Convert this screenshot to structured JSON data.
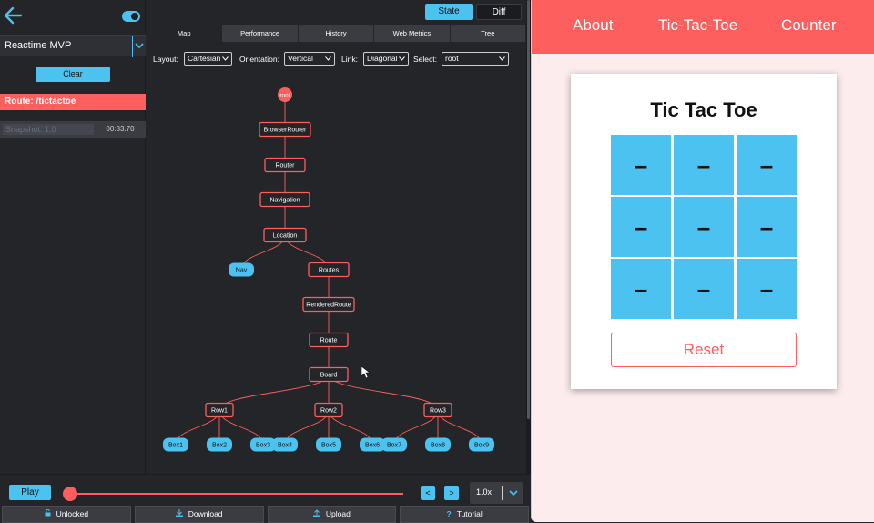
{
  "sidebar": {
    "app_name": "Reactime MVP",
    "clear_label": "Clear",
    "route_label": "Route: /tictactoe",
    "snapshot_label": "Snapshot: 1.0",
    "snapshot_time": "00:33.70"
  },
  "view_toggle": {
    "state_label": "State",
    "diff_label": "Diff"
  },
  "tabs": [
    {
      "label": "Map",
      "active": true
    },
    {
      "label": "Performance"
    },
    {
      "label": "History"
    },
    {
      "label": "Web Metrics"
    },
    {
      "label": "Tree"
    }
  ],
  "controls": {
    "layout_label": "Layout:",
    "layout_value": "Cartesian",
    "orientation_label": "Orientation:",
    "orientation_value": "Vertical",
    "link_label": "Link:",
    "link_value": "Diagonal",
    "select_label": "Select:",
    "select_value": "root"
  },
  "tree": {
    "root": "root",
    "browser_router": "BrowserRouter",
    "router": "Router",
    "navigation": "Navigation",
    "location": "Location",
    "nav": "Nav",
    "routes": "Routes",
    "rendered_route": "RenderedRoute",
    "route": "Route",
    "board": "Board",
    "rows": [
      "Row1",
      "Row2",
      "Row3"
    ],
    "boxes": [
      "Box1",
      "Box2",
      "Box3",
      "Box4",
      "Box5",
      "Box6",
      "Box7",
      "Box8",
      "Box9"
    ]
  },
  "playback": {
    "play_label": "Play",
    "prev_label": "<",
    "next_label": ">",
    "speed_label": "1.0x"
  },
  "actions": {
    "unlocked_label": "Unlocked",
    "download_label": "Download",
    "upload_label": "Upload",
    "tutorial_label": "Tutorial"
  },
  "app": {
    "nav": [
      "About",
      "Tic-Tac-Toe",
      "Counter"
    ],
    "title": "Tic Tac Toe",
    "cells": [
      "–",
      "–",
      "–",
      "–",
      "–",
      "–",
      "–",
      "–",
      "–"
    ],
    "reset_label": "Reset"
  },
  "colors": {
    "accent_blue": "#4cc2f0",
    "accent_red": "#fd5f5f",
    "bg_dark": "#242529"
  }
}
